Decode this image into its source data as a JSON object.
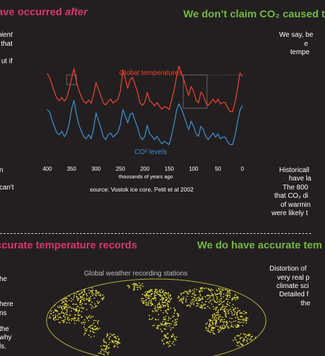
{
  "left_top": {
    "heading_plain": "ave occurred ",
    "heading_em": "after",
    "lines": [
      "pient",
      "that",
      "ut if",
      "n",
      "can't"
    ]
  },
  "right_top": {
    "heading": "We don’t claim CO₂ caused t",
    "lines": [
      "We say, be",
      "e",
      "tempe",
      "Historicall",
      "have la",
      "The 800",
      "that CO₂ di",
      "of warmin",
      "were likely t"
    ]
  },
  "left_bottom": {
    "heading": "ccurate temperature records",
    "lines": [
      "he",
      "here",
      "ns",
      "the",
      "why",
      "ls."
    ]
  },
  "right_bottom": {
    "heading": "We do have accurate tem",
    "lines": [
      "Distortion of",
      "very real p",
      "climate sci",
      "Detailed f",
      "the"
    ]
  },
  "map": {
    "title": "Global weather recording stations"
  },
  "chart_data": {
    "type": "line",
    "xlabel": "thousands of years ago",
    "x_ticks": [
      400,
      350,
      300,
      250,
      200,
      150,
      100,
      50,
      0
    ],
    "xlim": [
      400,
      0
    ],
    "source": "source: Vostok ice core, Petit et al 2002",
    "series": [
      {
        "name": "Global temperatures",
        "color": "#e8442e",
        "x": [
          400,
          395,
          390,
          385,
          380,
          375,
          370,
          365,
          360,
          355,
          350,
          345,
          340,
          335,
          330,
          325,
          320,
          315,
          310,
          305,
          300,
          295,
          290,
          285,
          280,
          275,
          270,
          265,
          260,
          255,
          250,
          245,
          240,
          235,
          230,
          225,
          220,
          215,
          210,
          205,
          200,
          195,
          190,
          185,
          180,
          175,
          170,
          165,
          160,
          155,
          150,
          145,
          140,
          135,
          130,
          125,
          120,
          115,
          110,
          105,
          100,
          95,
          90,
          85,
          80,
          75,
          70,
          65,
          60,
          55,
          50,
          45,
          40,
          35,
          30,
          25,
          20,
          15,
          10,
          5,
          0
        ],
        "y": [
          0.3,
          -0.6,
          -2.4,
          -4.2,
          -5.6,
          -6.2,
          -5.4,
          -6.3,
          -5.5,
          -3.4,
          -0.8,
          1.5,
          -1.7,
          -3.8,
          -5.2,
          -6.4,
          -6.8,
          -6.0,
          -6.8,
          -4.8,
          -1.8,
          -3.4,
          -5.1,
          -6.7,
          -7.2,
          -6.3,
          -5.8,
          -6.8,
          -6.3,
          -5.8,
          -3.8,
          1.2,
          -0.9,
          -3.2,
          -1.1,
          -0.6,
          -2.3,
          -4.1,
          -6.6,
          -7.3,
          -6.6,
          -4.2,
          -6.2,
          -6.7,
          -7.4,
          -6.6,
          -7.5,
          -8.2,
          -7.6,
          -7.8,
          -8.3,
          -6.1,
          -3.6,
          -0.5,
          2.1,
          0.5,
          -1.1,
          -3.1,
          -4.9,
          -2.8,
          -3.9,
          -6.0,
          -6.7,
          -4.1,
          -4.9,
          -6.6,
          -7.3,
          -6.6,
          -5.8,
          -6.7,
          -5.8,
          -7.0,
          -6.6,
          -6.6,
          -7.9,
          -8.8,
          -8.8,
          -6.5,
          -3.4,
          0.5,
          -0.4
        ]
      },
      {
        "name": "CO² levels",
        "color": "#3a8fd0",
        "x": [
          400,
          395,
          390,
          385,
          380,
          375,
          370,
          365,
          360,
          355,
          350,
          345,
          340,
          335,
          330,
          325,
          320,
          315,
          310,
          305,
          300,
          295,
          290,
          285,
          280,
          275,
          270,
          265,
          260,
          255,
          250,
          245,
          240,
          235,
          230,
          225,
          220,
          215,
          210,
          205,
          200,
          195,
          190,
          185,
          180,
          175,
          170,
          165,
          160,
          155,
          150,
          145,
          140,
          135,
          130,
          125,
          120,
          115,
          110,
          105,
          100,
          95,
          90,
          85,
          80,
          75,
          70,
          65,
          60,
          55,
          50,
          45,
          40,
          35,
          30,
          25,
          20,
          15,
          10,
          5,
          0
        ],
        "y": [
          270,
          264,
          245,
          228,
          214,
          210,
          218,
          205,
          214,
          236,
          272,
          292,
          258,
          233,
          218,
          205,
          200,
          210,
          200,
          224,
          262,
          244,
          226,
          205,
          198,
          210,
          214,
          204,
          210,
          216,
          235,
          270,
          255,
          238,
          258,
          262,
          244,
          228,
          206,
          198,
          206,
          232,
          212,
          206,
          198,
          206,
          196,
          188,
          194,
          190,
          186,
          208,
          236,
          268,
          284,
          272,
          256,
          238,
          222,
          242,
          230,
          212,
          206,
          230,
          222,
          206,
          198,
          206,
          214,
          204,
          212,
          200,
          204,
          204,
          192,
          186,
          186,
          208,
          240,
          268,
          280
        ]
      }
    ]
  }
}
